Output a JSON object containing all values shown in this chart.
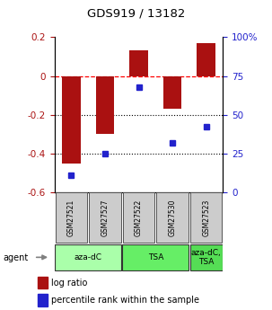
{
  "title": "GDS919 / 13182",
  "samples": [
    "GSM27521",
    "GSM27527",
    "GSM27522",
    "GSM27530",
    "GSM27523"
  ],
  "log_ratio": [
    -0.45,
    -0.3,
    0.13,
    -0.17,
    0.17
  ],
  "percentile_rank": [
    11,
    25,
    68,
    32,
    42
  ],
  "bar_color": "#aa1111",
  "dot_color": "#2222cc",
  "groups": [
    {
      "label": "aza-dC",
      "spans": [
        0,
        2
      ],
      "color": "#aaffaa"
    },
    {
      "label": "TSA",
      "spans": [
        2,
        4
      ],
      "color": "#66ee66"
    },
    {
      "label": "aza-dC,\nTSA",
      "spans": [
        4,
        5
      ],
      "color": "#55dd55"
    }
  ],
  "ylim_left": [
    -0.6,
    0.2
  ],
  "ylim_right": [
    0,
    100
  ],
  "yticks_left": [
    0.2,
    0.0,
    -0.2,
    -0.4,
    -0.6
  ],
  "yticks_right": [
    100,
    75,
    50,
    25,
    0
  ],
  "bar_width": 0.55,
  "background_color": "#ffffff",
  "agent_label": "agent"
}
